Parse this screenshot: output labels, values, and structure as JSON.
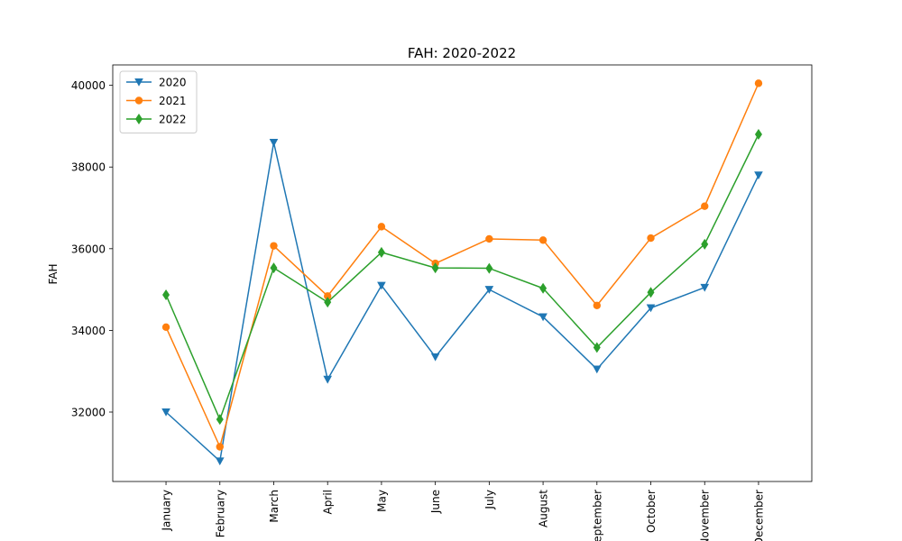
{
  "chart_data": {
    "type": "line",
    "title": "FAH: 2020-2022",
    "xlabel": "",
    "ylabel": "FAH",
    "categories": [
      "January",
      "February",
      "March",
      "April",
      "May",
      "June",
      "July",
      "August",
      "September",
      "October",
      "November",
      "December"
    ],
    "yticks": [
      32000,
      34000,
      36000,
      38000,
      40000
    ],
    "ylim": [
      30300,
      40500
    ],
    "grid": false,
    "legend_position": "top-left",
    "series": [
      {
        "name": "2020",
        "color": "#1f77b4",
        "marker": "triangle-down",
        "values": [
          32000,
          30800,
          38600,
          32800,
          35100,
          33350,
          35000,
          34330,
          33050,
          34550,
          35050,
          37800
        ]
      },
      {
        "name": "2021",
        "color": "#ff7f0e",
        "marker": "circle",
        "values": [
          34080,
          31150,
          36070,
          34840,
          36540,
          35640,
          36240,
          36210,
          34610,
          36260,
          37040,
          40050
        ]
      },
      {
        "name": "2022",
        "color": "#2ca02c",
        "marker": "diamond",
        "values": [
          34870,
          31820,
          35530,
          34690,
          35910,
          35530,
          35520,
          35030,
          33580,
          34930,
          36110,
          38800
        ]
      }
    ]
  }
}
